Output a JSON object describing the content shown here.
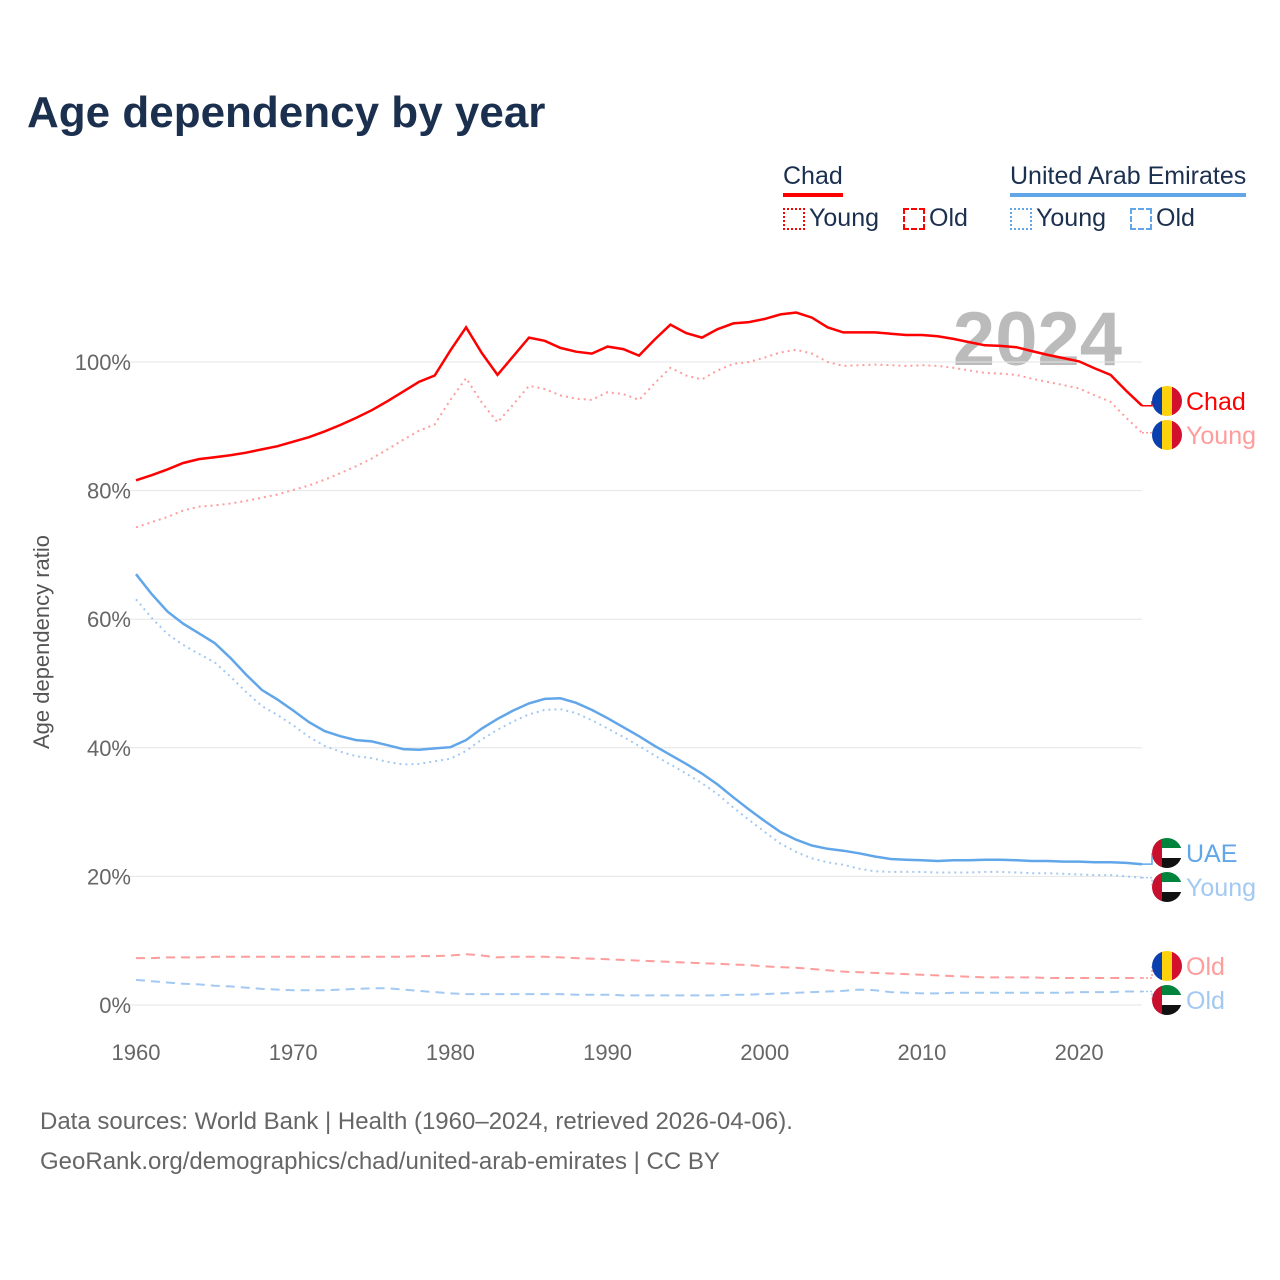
{
  "title": "Age dependency by year",
  "legend": {
    "countries": [
      {
        "name": "Chad",
        "color": "#ff0000",
        "young": "Young",
        "old": "Old"
      },
      {
        "name": "United Arab Emirates",
        "color": "#62a6ea",
        "young": "Young",
        "old": "Old"
      }
    ]
  },
  "year_watermark": "2024",
  "footer": {
    "line1": "Data sources: World Bank | Health (1960–2024, retrieved 2026-04-06).",
    "line2": "GeoRank.org/demographics/chad/united-arab-emirates | CC BY"
  },
  "chart_data": {
    "type": "line",
    "title": "Age dependency by year",
    "xlabel": "",
    "ylabel": "Age dependency ratio",
    "xlim": [
      1960,
      2024
    ],
    "ylim": [
      0,
      100
    ],
    "x_ticks": [
      "1960",
      "1970",
      "1980",
      "1990",
      "2000",
      "2010",
      "2020"
    ],
    "y_ticks": [
      "0%",
      "20%",
      "40%",
      "60%",
      "80%",
      "100%"
    ],
    "grid": true,
    "x_start": 1960,
    "series": [
      {
        "name": "Chad",
        "end_label": "Chad",
        "style": "solid",
        "color": "#ff0000",
        "flag": "chad",
        "values": [
          81.6,
          82.4,
          83.3,
          84.3,
          84.9,
          85.2,
          85.5,
          85.9,
          86.4,
          86.9,
          87.6,
          88.3,
          89.2,
          90.2,
          91.3,
          92.5,
          93.9,
          95.4,
          96.9,
          97.9,
          101.8,
          105.4,
          101.4,
          98.0,
          100.9,
          103.8,
          103.3,
          102.2,
          101.6,
          101.3,
          102.4,
          102.0,
          101.0,
          103.5,
          105.8,
          104.5,
          103.8,
          105.1,
          106.0,
          106.2,
          106.7,
          107.4,
          107.7,
          106.9,
          105.4,
          104.6,
          104.6,
          104.6,
          104.4,
          104.2,
          104.2,
          104.0,
          103.6,
          103.1,
          102.6,
          102.5,
          102.3,
          101.7,
          101.1,
          100.6,
          100.1,
          99.0,
          98.0,
          95.5,
          93.2
        ]
      },
      {
        "name": "Chad Young",
        "end_label": "Young",
        "style": "dotted",
        "color": "#ff9c9c",
        "flag": "chad",
        "values": [
          74.3,
          75.1,
          75.9,
          76.9,
          77.5,
          77.7,
          78.0,
          78.4,
          78.9,
          79.4,
          80.1,
          80.8,
          81.7,
          82.7,
          83.8,
          85.0,
          86.4,
          87.9,
          89.3,
          90.3,
          94.1,
          97.5,
          93.7,
          90.6,
          93.4,
          96.3,
          95.8,
          94.8,
          94.3,
          94.1,
          95.3,
          95.0,
          94.1,
          96.7,
          99.1,
          97.9,
          97.3,
          98.7,
          99.7,
          100.0,
          100.7,
          101.5,
          101.9,
          101.3,
          100.0,
          99.4,
          99.5,
          99.6,
          99.5,
          99.4,
          99.5,
          99.4,
          99.1,
          98.7,
          98.3,
          98.2,
          98.0,
          97.4,
          96.9,
          96.4,
          95.9,
          94.8,
          93.8,
          91.3,
          89.0
        ]
      },
      {
        "name": "Chad Old",
        "end_label": "Old",
        "style": "dashed",
        "color": "#ff9c9c",
        "flag": "chad",
        "values": [
          7.3,
          7.3,
          7.4,
          7.4,
          7.4,
          7.5,
          7.5,
          7.5,
          7.5,
          7.5,
          7.5,
          7.5,
          7.5,
          7.5,
          7.5,
          7.5,
          7.5,
          7.5,
          7.6,
          7.6,
          7.7,
          7.9,
          7.7,
          7.4,
          7.5,
          7.5,
          7.5,
          7.4,
          7.3,
          7.2,
          7.1,
          7.0,
          6.9,
          6.8,
          6.7,
          6.6,
          6.5,
          6.4,
          6.3,
          6.2,
          6.0,
          5.9,
          5.8,
          5.6,
          5.4,
          5.2,
          5.1,
          5.0,
          4.9,
          4.8,
          4.7,
          4.6,
          4.5,
          4.4,
          4.3,
          4.3,
          4.3,
          4.3,
          4.2,
          4.2,
          4.2,
          4.2,
          4.2,
          4.2,
          4.2
        ]
      },
      {
        "name": "United Arab Emirates",
        "end_label": "UAE",
        "style": "solid",
        "color": "#62a6ea",
        "flag": "uae",
        "values": [
          67.0,
          63.9,
          61.2,
          59.3,
          57.8,
          56.3,
          54.0,
          51.4,
          49.0,
          47.5,
          45.8,
          44.0,
          42.6,
          41.8,
          41.2,
          41.0,
          40.4,
          39.8,
          39.7,
          39.9,
          40.1,
          41.2,
          43.0,
          44.5,
          45.8,
          46.9,
          47.6,
          47.7,
          47.0,
          45.9,
          44.6,
          43.2,
          41.8,
          40.3,
          38.9,
          37.5,
          36.0,
          34.3,
          32.3,
          30.4,
          28.6,
          26.9,
          25.7,
          24.8,
          24.3,
          24.0,
          23.6,
          23.1,
          22.7,
          22.6,
          22.5,
          22.4,
          22.5,
          22.5,
          22.6,
          22.6,
          22.5,
          22.4,
          22.4,
          22.3,
          22.3,
          22.2,
          22.2,
          22.1,
          21.9
        ]
      },
      {
        "name": "United Arab Emirates Young",
        "end_label": "Young",
        "style": "dotted",
        "color": "#a3c9f2",
        "flag": "uae",
        "values": [
          63.1,
          60.2,
          57.7,
          56.0,
          54.6,
          53.3,
          51.1,
          48.7,
          46.5,
          45.1,
          43.5,
          41.7,
          40.3,
          39.4,
          38.7,
          38.4,
          37.8,
          37.4,
          37.5,
          37.9,
          38.3,
          39.5,
          41.3,
          42.8,
          44.1,
          45.2,
          45.9,
          46.0,
          45.4,
          44.3,
          43.0,
          41.7,
          40.3,
          38.8,
          37.4,
          36.0,
          34.5,
          32.8,
          30.7,
          28.8,
          26.9,
          25.1,
          23.8,
          22.8,
          22.2,
          21.8,
          21.2,
          20.8,
          20.7,
          20.7,
          20.7,
          20.6,
          20.6,
          20.6,
          20.7,
          20.7,
          20.6,
          20.5,
          20.5,
          20.4,
          20.3,
          20.2,
          20.2,
          20.0,
          19.8
        ]
      },
      {
        "name": "United Arab Emirates Old",
        "end_label": "Old",
        "style": "dashed",
        "color": "#a3c9f2",
        "flag": "uae",
        "values": [
          3.9,
          3.7,
          3.5,
          3.3,
          3.2,
          3.0,
          2.9,
          2.7,
          2.5,
          2.4,
          2.3,
          2.3,
          2.3,
          2.4,
          2.5,
          2.6,
          2.6,
          2.4,
          2.2,
          2.0,
          1.8,
          1.7,
          1.7,
          1.7,
          1.7,
          1.7,
          1.7,
          1.7,
          1.6,
          1.6,
          1.6,
          1.5,
          1.5,
          1.5,
          1.5,
          1.5,
          1.5,
          1.5,
          1.6,
          1.6,
          1.7,
          1.8,
          1.9,
          2.0,
          2.1,
          2.2,
          2.4,
          2.3,
          2.0,
          1.9,
          1.8,
          1.8,
          1.9,
          1.9,
          1.9,
          1.9,
          1.9,
          1.9,
          1.9,
          1.9,
          2.0,
          2.0,
          2.0,
          2.1,
          2.1
        ]
      }
    ]
  }
}
